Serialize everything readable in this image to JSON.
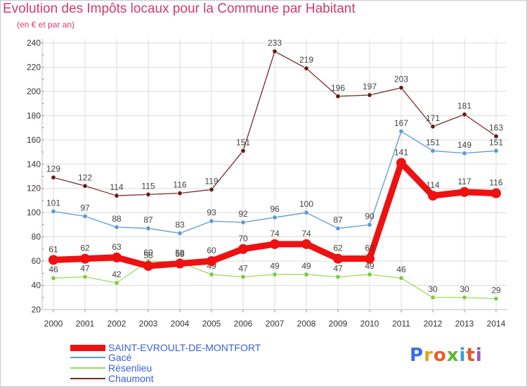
{
  "header": {
    "title": "Evolution des Impôts locaux pour la Commune par Habitant",
    "subtitle": "(en € et par an)"
  },
  "logo": {
    "text": "Proxiti",
    "colors": [
      "#3a6ee8",
      "#e2a21e",
      "#e85c2a",
      "#5cb82f",
      "#3a9bd6",
      "#e8542a",
      "#9a52c8"
    ]
  },
  "chart_data": {
    "type": "line",
    "title": "Evolution des Impôts locaux pour la Commune par Habitant",
    "subtitle": "(en € et par an)",
    "xlabel": "",
    "ylabel": "",
    "x": [
      "2000",
      "2001",
      "2002",
      "2003",
      "2004",
      "2005",
      "2006",
      "2007",
      "2008",
      "2009",
      "2010",
      "2011",
      "2012",
      "2013",
      "2014"
    ],
    "ylim": [
      20,
      240
    ],
    "yticks": [
      "20",
      "40",
      "60",
      "80",
      "100",
      "120",
      "140",
      "160",
      "180",
      "200",
      "220",
      "240"
    ],
    "grid": true,
    "legend_position": "bottom-left",
    "series": [
      {
        "name": "SAINT-EVROULT-DE-MONTFORT",
        "color": "#ee1111",
        "marker_color": "#ee1111",
        "emphasis": "thick",
        "values": [
          61,
          62,
          63,
          56,
          58,
          60,
          70,
          74,
          74,
          62,
          62,
          141,
          114,
          117,
          116
        ],
        "labels": [
          "61",
          "62",
          "63",
          "56",
          "58",
          "60",
          "70",
          "74",
          "74",
          "62",
          "62",
          "141",
          "114",
          "117",
          "116"
        ]
      },
      {
        "name": "Gacé",
        "color": "#5a9ad6",
        "marker_color": "#5a9ad6",
        "emphasis": "thin",
        "values": [
          101,
          97,
          88,
          87,
          83,
          93,
          92,
          96,
          100,
          87,
          90,
          167,
          151,
          149,
          151
        ],
        "labels": [
          "101",
          "97",
          "88",
          "87",
          "83",
          "93",
          "92",
          "96",
          "100",
          "87",
          "90",
          "167",
          "151",
          "149",
          "151"
        ]
      },
      {
        "name": "Résenlieu",
        "color": "#9cdb5c",
        "marker_color": "#7ccb3c",
        "emphasis": "thin",
        "values": [
          46,
          47,
          42,
          60,
          59,
          49,
          47,
          49,
          49,
          47,
          49,
          46,
          30,
          30,
          29
        ],
        "labels": [
          "46",
          "47",
          "42",
          "60",
          "59",
          "49",
          "47",
          "49",
          "49",
          "47",
          "49",
          "46",
          "30",
          "30",
          "29"
        ]
      },
      {
        "name": "Chaumont",
        "color": "#7a2a2a",
        "marker_color": "#6a1a1a",
        "emphasis": "thin",
        "values": [
          129,
          122,
          114,
          115,
          116,
          119,
          151,
          233,
          219,
          196,
          197,
          203,
          171,
          181,
          163
        ],
        "labels": [
          "129",
          "122",
          "114",
          "115",
          "116",
          "119",
          "151",
          "233",
          "219",
          "196",
          "197",
          "203",
          "171",
          "181",
          "163"
        ]
      }
    ]
  }
}
